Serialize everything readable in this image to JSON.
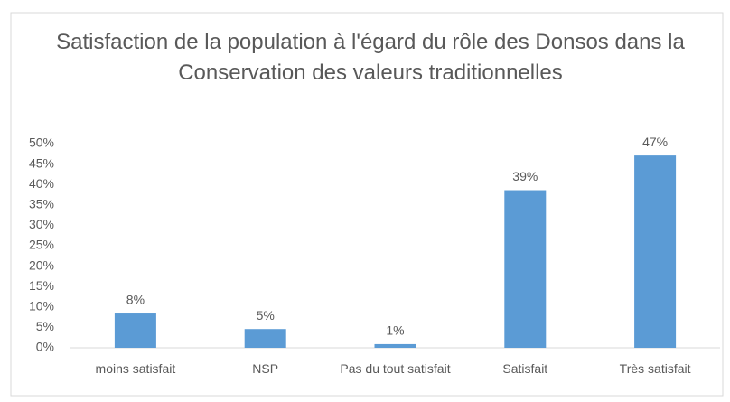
{
  "chart_data": {
    "type": "bar",
    "title": "Satisfaction de la population à l'égard du rôle des Donsos dans la Conservation des valeurs traditionnelles",
    "categories": [
      "moins satisfait",
      "NSP",
      "Pas du tout satisfait",
      "Satisfait",
      "Très satisfait"
    ],
    "values": [
      8.4,
      4.6,
      0.9,
      38.6,
      47.1
    ],
    "value_labels": [
      "8%",
      "5%",
      "1%",
      "39%",
      "47%"
    ],
    "color": "#5b9bd5",
    "ylim": [
      0,
      50
    ],
    "yticks": [
      {
        "value": 0,
        "label": "0%"
      },
      {
        "value": 5,
        "label": "5%"
      },
      {
        "value": 10,
        "label": "10%"
      },
      {
        "value": 15,
        "label": "15%"
      },
      {
        "value": 20,
        "label": "20%"
      },
      {
        "value": 25,
        "label": "25%"
      },
      {
        "value": 30,
        "label": "30%"
      },
      {
        "value": 35,
        "label": "35%"
      },
      {
        "value": 40,
        "label": "40%"
      },
      {
        "value": 45,
        "label": "45%"
      },
      {
        "value": 50,
        "label": "50%"
      }
    ],
    "grid": false
  }
}
